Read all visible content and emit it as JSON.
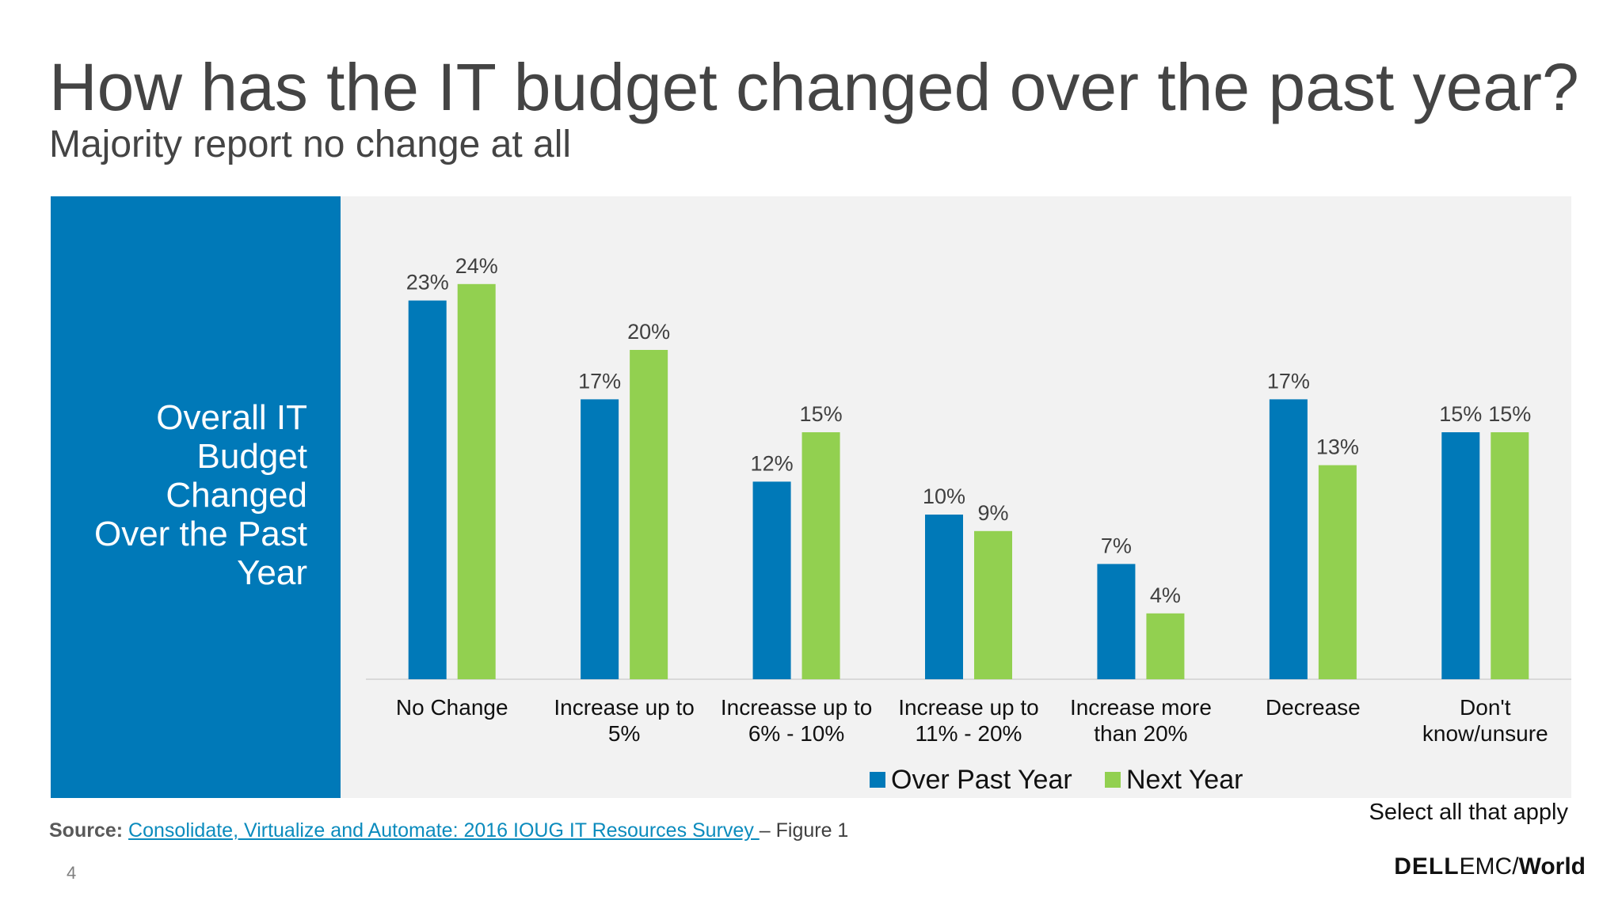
{
  "header": {
    "title": "How has the IT budget changed over the past year?",
    "subtitle": "Majority report no change at all"
  },
  "side_panel": {
    "lines": [
      "Overall IT",
      "Budget",
      "Changed",
      "Over the Past",
      "Year"
    ]
  },
  "chart_data": {
    "type": "bar",
    "categories": [
      [
        "No Change"
      ],
      [
        "Increase up to",
        "5%"
      ],
      [
        "Increasse up to",
        "6% - 10%"
      ],
      [
        "Increase up to",
        "11% - 20%"
      ],
      [
        "Increase more",
        "than 20%"
      ],
      [
        "Decrease"
      ],
      [
        "Don't",
        "know/unsure"
      ]
    ],
    "series": [
      {
        "name": "Over Past Year",
        "values": [
          23,
          17,
          12,
          10,
          7,
          17,
          15
        ],
        "color": "#0079b8"
      },
      {
        "name": "Next Year",
        "values": [
          24,
          20,
          15,
          9,
          4,
          13,
          15
        ],
        "color": "#92d050"
      }
    ],
    "value_suffix": "%",
    "ylim": [
      0,
      25
    ],
    "grid": false,
    "legend_position": "bottom"
  },
  "footer": {
    "note": "Select all that apply",
    "source_label": "Source:",
    "source_link": "Consolidate, Virtualize and Automate: 2016 IOUG IT Resources Survey ",
    "source_suffix": "– Figure 1",
    "page_number": "4"
  },
  "logo": {
    "brand_bold": "DELL",
    "brand_light": "EMC",
    "brand_world": "World"
  },
  "colors": {
    "side_panel": "#0079b8",
    "chart_background": "#f2f2f2"
  }
}
